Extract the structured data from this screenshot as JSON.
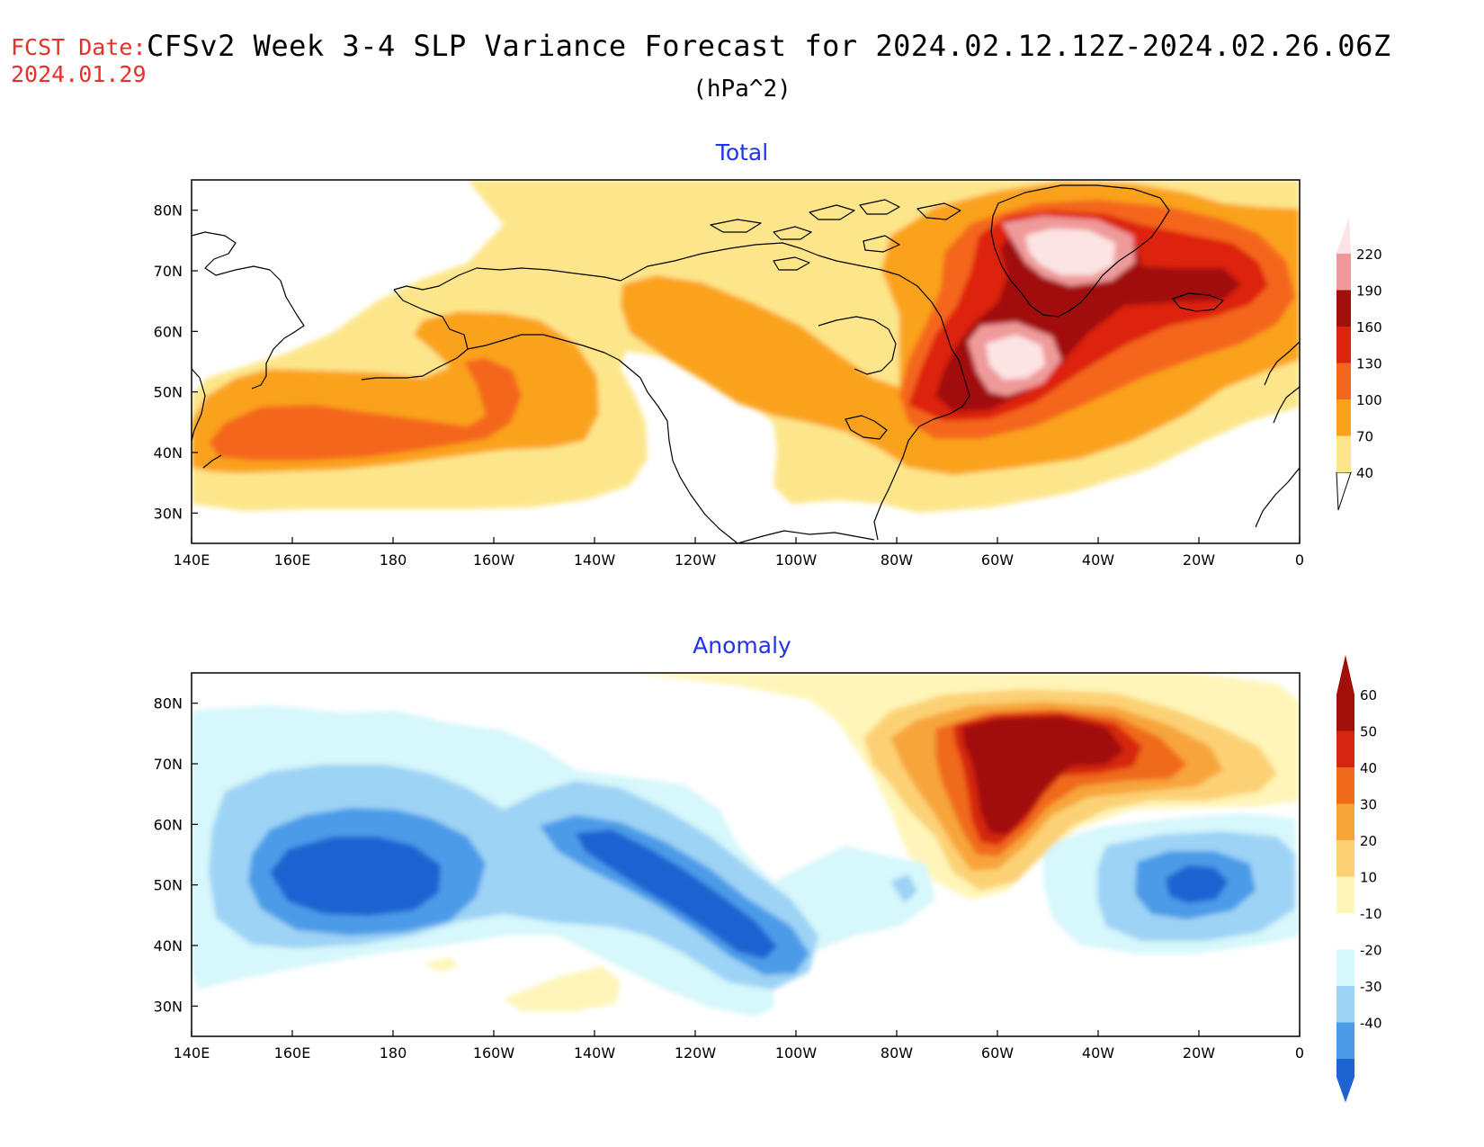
{
  "header": {
    "fcst_label": "FCST Date:",
    "fcst_date": "2024.01.29",
    "title": "CFSv2 Week 3-4 SLP Variance Forecast for 2024.02.12.12Z-2024.02.26.06Z",
    "units": "(hPa^2)"
  },
  "panels": [
    {
      "title": "Total",
      "lat_ticks": [
        "80N",
        "70N",
        "60N",
        "50N",
        "40N",
        "30N"
      ],
      "lon_ticks": [
        "140E",
        "160E",
        "180",
        "160W",
        "140W",
        "120W",
        "100W",
        "80W",
        "60W",
        "40W",
        "20W",
        "0"
      ],
      "colorbar": {
        "levels": [
          "40",
          "70",
          "100",
          "130",
          "160",
          "190",
          "220"
        ],
        "colors": [
          "#fde68a",
          "#fba21a",
          "#f4661c",
          "#dd2410",
          "#a10f0a",
          "#ef9a9a",
          "#fde4e4"
        ]
      }
    },
    {
      "title": "Anomaly",
      "lat_ticks": [
        "80N",
        "70N",
        "60N",
        "50N",
        "40N",
        "30N"
      ],
      "lon_ticks": [
        "140E",
        "160E",
        "180",
        "160W",
        "140W",
        "120W",
        "100W",
        "80W",
        "60W",
        "40W",
        "20W",
        "0"
      ],
      "colorbar": {
        "levels": [
          "60",
          "50",
          "40",
          "30",
          "20",
          "10",
          "-10",
          "-20",
          "-30",
          "-40"
        ],
        "colors": [
          "#a10f0a",
          "#d6260f",
          "#f06a1c",
          "#f7a53a",
          "#fcd174",
          "#fff5b8",
          "#ffffff",
          "#d6f7fb",
          "#9dd3f5",
          "#4b9be8",
          "#1f63d1"
        ]
      }
    }
  ],
  "map": {
    "lat_range": [
      25,
      85
    ],
    "lon_range": [
      140,
      360
    ],
    "projection": "cylindrical equidistant"
  }
}
